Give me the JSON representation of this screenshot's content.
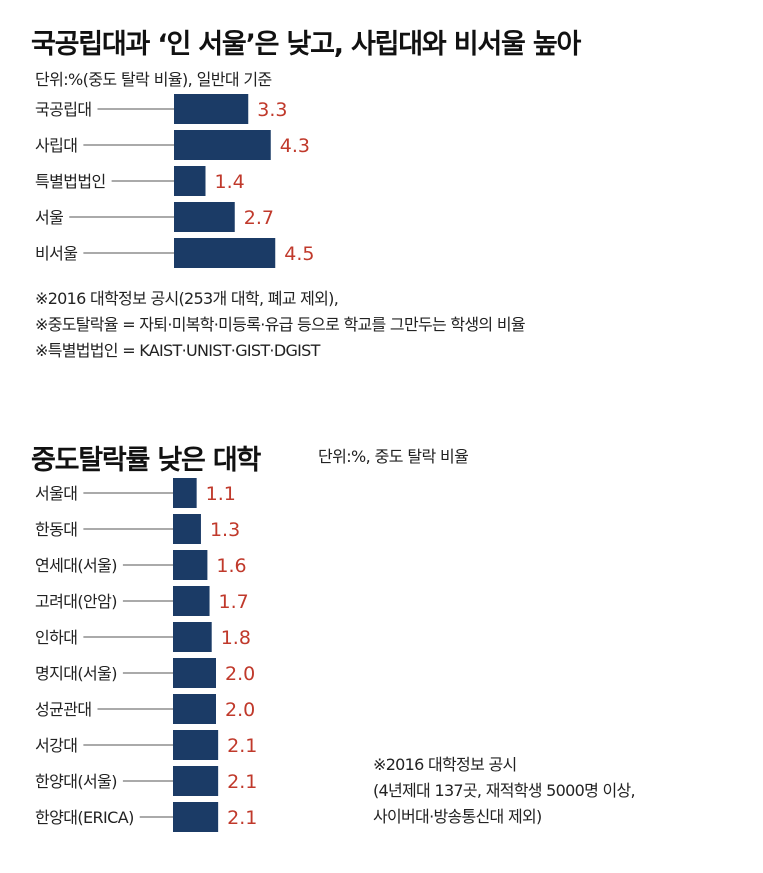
{
  "chart1": {
    "title": "국공립대과 ‘인 서울’은 낮고, 사립대와 비서울 높아",
    "subtitle": "단위:%(중도 탈락 비율), 일반대 기준",
    "notes": [
      "※2016 대학정보 공시(253개 대학, 폐교 제외),",
      "※중도탈락율 = 자퇴·미복학·미등록·유급 등으로 학교를 그만두는 학생의 비율",
      "※특별법법인 = KAIST·UNIST·GIST·DGIST"
    ]
  },
  "chart2": {
    "title": "중도탈락률 낮은 대학",
    "unit": "단위:%, 중도 탈락 비율",
    "notes": [
      "※2016 대학정보 공시",
      "(4년제대 137곳, 재적학생 5000명 이상,",
      "사이버대·방송통신대 제외)"
    ]
  },
  "colors": {
    "bar": "#1b3b66",
    "value": "#c0392b"
  },
  "chart_data": [
    {
      "type": "bar",
      "orientation": "horizontal",
      "title": "국공립대과 ‘인 서울’은 낮고, 사립대와 비서울 높아",
      "unit": "%",
      "categories": [
        "국공립대",
        "사립대",
        "특별법법인",
        "서울",
        "비서울"
      ],
      "values": [
        3.3,
        4.3,
        1.4,
        2.7,
        4.5
      ],
      "value_labels": [
        "3.3",
        "4.3",
        "1.4",
        "2.7",
        "4.5"
      ]
    },
    {
      "type": "bar",
      "orientation": "horizontal",
      "title": "중도탈락률 낮은 대학",
      "unit": "%",
      "categories": [
        "서울대",
        "한동대",
        "연세대(서울)",
        "고려대(안암)",
        "인하대",
        "명지대(서울)",
        "성균관대",
        "서강대",
        "한양대(서울)",
        "한양대(ERICA)"
      ],
      "values": [
        1.1,
        1.3,
        1.6,
        1.7,
        1.8,
        2.0,
        2.0,
        2.1,
        2.1,
        2.1
      ],
      "value_labels": [
        "1.1",
        "1.3",
        "1.6",
        "1.7",
        "1.8",
        "2.0",
        "2.0",
        "2.1",
        "2.1",
        "2.1"
      ]
    }
  ]
}
